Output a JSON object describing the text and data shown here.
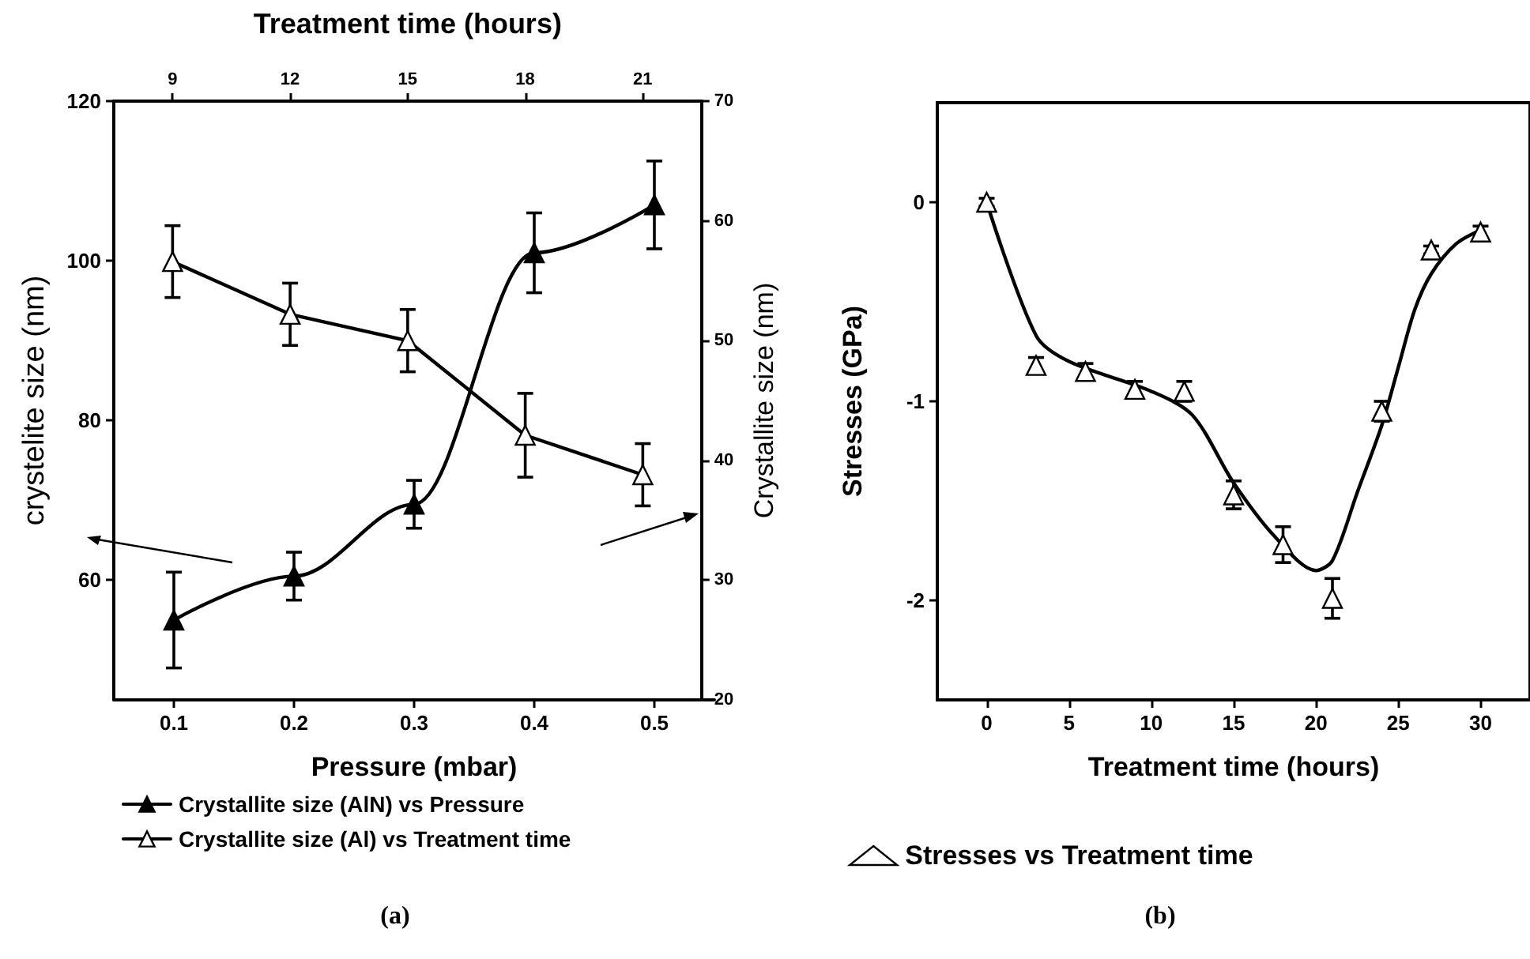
{
  "chart_data": [
    {
      "type": "line",
      "xlabel": "Pressure (mbar)",
      "ylabel": "crystelite size (nm)",
      "annotations": [
        "(a)"
      ],
      "xlim": [
        0.05,
        0.55
      ],
      "xticks": [
        0.1,
        0.2,
        0.3,
        0.4,
        0.5
      ],
      "ylim": [
        45,
        120
      ],
      "yticks": [
        60,
        80,
        100,
        120
      ],
      "grid": false,
      "legend": "bottom",
      "marker": "triangle",
      "series": [
        {
          "name": "Crystallite size (AlN) vs Pressure",
          "color": "#000000",
          "x": [
            0.1,
            0.2,
            0.3,
            0.4,
            0.5
          ],
          "values": [
            55,
            60.5,
            69.5,
            101,
            107
          ],
          "errors": [
            6,
            3,
            3,
            5,
            5.5
          ]
        }
      ]
    },
    {
      "type": "line",
      "xlabel": "Treatment time (hours)",
      "ylabel": "Crystallite size (nm)",
      "xlim": [
        7.5,
        22.5
      ],
      "xticks": [
        9,
        12,
        15,
        18,
        21
      ],
      "ylim": [
        20,
        70
      ],
      "yticks": [
        20,
        30,
        40,
        50,
        60,
        70
      ],
      "grid": false,
      "legend": "bottom",
      "marker": "triangle",
      "series": [
        {
          "name": "Crystallite size (Al) vs Treatment time",
          "color": "#ffffff",
          "x": [
            9,
            12,
            15,
            18,
            21
          ],
          "values": [
            56.6,
            52.2,
            50,
            42.1,
            38.8
          ],
          "errors": [
            3,
            2.6,
            2.6,
            3.5,
            2.6
          ]
        }
      ]
    },
    {
      "type": "scatter",
      "xlabel": "Treatment time (hours)",
      "ylabel": "Stresses (GPa)",
      "annotations": [
        "(b)"
      ],
      "xlim": [
        -3,
        33
      ],
      "xticks": [
        0,
        5,
        10,
        15,
        20,
        25,
        30
      ],
      "ylim": [
        -2.5,
        0.5
      ],
      "yticks": [
        -2,
        -1,
        0
      ],
      "grid": false,
      "legend": "bottom",
      "marker": "triangle",
      "series": [
        {
          "name": "Stresses vs Treatment time",
          "color": "#ffffff",
          "x": [
            0,
            3,
            6,
            9,
            12,
            15,
            18,
            21,
            24,
            27,
            30
          ],
          "values": [
            0,
            -0.82,
            -0.85,
            -0.94,
            -0.95,
            -1.47,
            -1.72,
            -1.99,
            -1.05,
            -0.24,
            -0.15
          ],
          "errors": [
            0.02,
            0.04,
            0.04,
            0.04,
            0.05,
            0.07,
            0.09,
            0.1,
            0.05,
            0.02,
            0.03
          ]
        },
        {
          "type": "line",
          "color": "#000000",
          "marker": "none",
          "x": [
            0,
            3,
            5,
            10,
            12.5,
            15,
            17.5,
            20,
            21,
            22.5,
            24,
            25,
            26,
            27,
            28.5,
            30
          ],
          "values": [
            0,
            -0.67,
            -0.8,
            -0.95,
            -1.07,
            -1.41,
            -1.68,
            -1.85,
            -1.8,
            -1.46,
            -1.12,
            -0.83,
            -0.54,
            -0.36,
            -0.21,
            -0.14
          ]
        }
      ]
    }
  ]
}
